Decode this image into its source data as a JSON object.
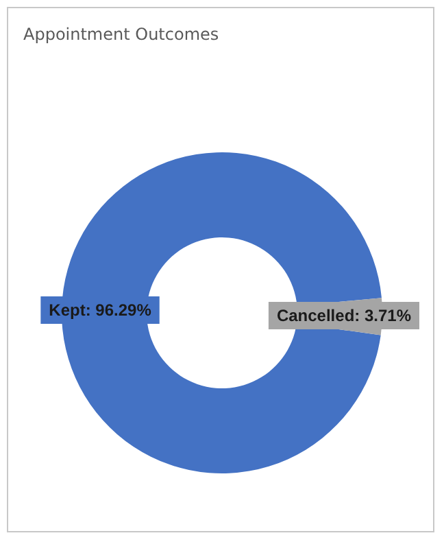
{
  "chart_data": {
    "type": "donut",
    "title": "Appointment Outcomes",
    "categories": [
      "Kept",
      "Cancelled"
    ],
    "values": [
      96.29,
      3.71
    ],
    "colors": [
      "#4472c4",
      "#a5a5a5"
    ],
    "value_labels": [
      ": 96.29%",
      ": 3.71%"
    ],
    "legend": false
  }
}
